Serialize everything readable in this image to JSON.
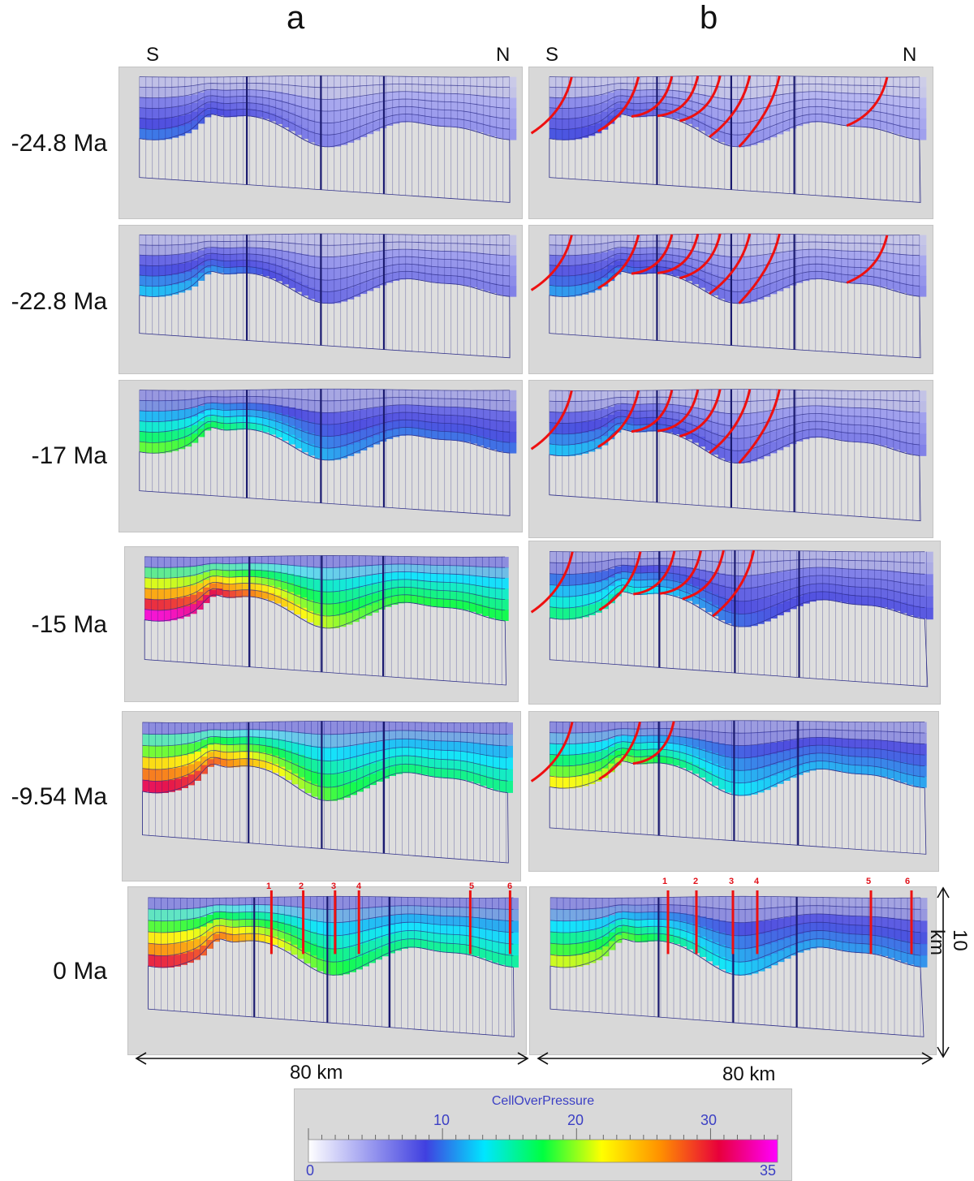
{
  "columns": [
    {
      "id": "a",
      "title": "a",
      "south": "S",
      "north": "N"
    },
    {
      "id": "b",
      "title": "b",
      "south": "S",
      "north": "N"
    }
  ],
  "stages": [
    {
      "age": "-24.8 Ma",
      "a_max": 10,
      "b_max": 9,
      "faults": 1.0
    },
    {
      "age": "-22.8 Ma",
      "a_max": 12,
      "b_max": 11,
      "faults": 1.0
    },
    {
      "age": "-17 Ma",
      "a_max": 19,
      "b_max": 12,
      "faults": 0.85
    },
    {
      "age": "-15 Ma",
      "a_max": 34,
      "b_max": 16,
      "faults": 0.7
    },
    {
      "age": "-9.54 Ma",
      "a_max": 31,
      "b_max": 22,
      "faults": 0.3
    },
    {
      "age": "0 Ma",
      "a_max": 30,
      "b_max": 21,
      "faults": 0.0
    }
  ],
  "wells": [
    "1",
    "2",
    "3",
    "4",
    "5",
    "6"
  ],
  "scale": {
    "length": "80 km",
    "depth": "10 km"
  },
  "colorbar": {
    "title": "CellOverPressure",
    "min": "0",
    "max": "35",
    "major_ticks": [
      "10",
      "20",
      "30"
    ],
    "colors": [
      "#ffffff",
      "#9f9ff0",
      "#4040e0",
      "#00e6ff",
      "#00ff40",
      "#ffff00",
      "#ff9000",
      "#e8003c",
      "#ff00ff"
    ]
  },
  "colors": {
    "fault": "#ee1010",
    "grid": "#30308a",
    "basement": "#dedede"
  }
}
